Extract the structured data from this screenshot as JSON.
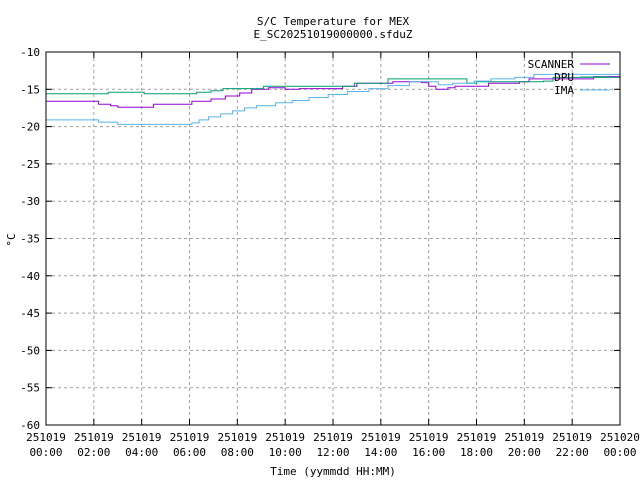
{
  "chart_data": {
    "type": "line",
    "title": "S/C Temperature for MEX",
    "subtitle": "E_SC20251019000000.sfduZ",
    "xlabel": "Time (yymmdd HH:MM)",
    "ylabel": "°C",
    "xlim": [
      0,
      24
    ],
    "ylim": [
      -60,
      -10
    ],
    "grid": true,
    "legend_position": "top-right",
    "x_ticks": [
      {
        "h": 0,
        "d": "251019",
        "t": "00:00"
      },
      {
        "h": 2,
        "d": "251019",
        "t": "02:00"
      },
      {
        "h": 4,
        "d": "251019",
        "t": "04:00"
      },
      {
        "h": 6,
        "d": "251019",
        "t": "06:00"
      },
      {
        "h": 8,
        "d": "251019",
        "t": "08:00"
      },
      {
        "h": 10,
        "d": "251019",
        "t": "10:00"
      },
      {
        "h": 12,
        "d": "251019",
        "t": "12:00"
      },
      {
        "h": 14,
        "d": "251019",
        "t": "14:00"
      },
      {
        "h": 16,
        "d": "251019",
        "t": "16:00"
      },
      {
        "h": 18,
        "d": "251019",
        "t": "18:00"
      },
      {
        "h": 20,
        "d": "251019",
        "t": "20:00"
      },
      {
        "h": 22,
        "d": "251019",
        "t": "22:00"
      },
      {
        "h": 24,
        "d": "251020",
        "t": "00:00"
      }
    ],
    "y_ticks": [
      -10,
      -15,
      -20,
      -25,
      -30,
      -35,
      -40,
      -45,
      -50,
      -55,
      -60
    ],
    "series": [
      {
        "name": "SCANNER",
        "color": "#9400d3",
        "points": [
          [
            0,
            -16.6
          ],
          [
            2.2,
            -17.0
          ],
          [
            2.7,
            -17.2
          ],
          [
            3.0,
            -17.4
          ],
          [
            4.5,
            -17.0
          ],
          [
            6.1,
            -16.6
          ],
          [
            6.9,
            -16.3
          ],
          [
            7.5,
            -15.9
          ],
          [
            8.1,
            -15.5
          ],
          [
            8.6,
            -15.0
          ],
          [
            9.3,
            -14.8
          ],
          [
            10.0,
            -15.0
          ],
          [
            10.6,
            -14.9
          ],
          [
            12.4,
            -14.6
          ],
          [
            13.0,
            -14.2
          ],
          [
            14.5,
            -14.0
          ],
          [
            15.7,
            -14.1
          ],
          [
            16.0,
            -14.6
          ],
          [
            16.3,
            -15.0
          ],
          [
            16.8,
            -14.8
          ],
          [
            17.1,
            -14.6
          ],
          [
            18.5,
            -14.2
          ],
          [
            19.8,
            -14.0
          ],
          [
            20.2,
            -13.6
          ],
          [
            21.5,
            -13.6
          ],
          [
            22.9,
            -13.3
          ],
          [
            24,
            -13.3
          ]
        ]
      },
      {
        "name": "DPU",
        "color": "#009e73",
        "points": [
          [
            0,
            -15.6
          ],
          [
            2.6,
            -15.4
          ],
          [
            4.1,
            -15.6
          ],
          [
            6.3,
            -15.4
          ],
          [
            6.9,
            -15.2
          ],
          [
            7.4,
            -14.9
          ],
          [
            9.1,
            -14.6
          ],
          [
            12.9,
            -14.2
          ],
          [
            14.3,
            -13.6
          ],
          [
            17.5,
            -13.6
          ],
          [
            17.6,
            -14.2
          ],
          [
            18.0,
            -14.0
          ],
          [
            20.8,
            -13.9
          ],
          [
            21.2,
            -13.4
          ],
          [
            24,
            -13.4
          ]
        ]
      },
      {
        "name": "IMA",
        "color": "#56b4e9",
        "points": [
          [
            0,
            -19.1
          ],
          [
            2.2,
            -19.4
          ],
          [
            3.0,
            -19.7
          ],
          [
            6.1,
            -19.5
          ],
          [
            6.4,
            -19.1
          ],
          [
            6.8,
            -18.7
          ],
          [
            7.3,
            -18.3
          ],
          [
            7.8,
            -17.9
          ],
          [
            8.3,
            -17.5
          ],
          [
            8.8,
            -17.2
          ],
          [
            9.6,
            -16.8
          ],
          [
            10.3,
            -16.5
          ],
          [
            11.0,
            -16.1
          ],
          [
            11.8,
            -15.7
          ],
          [
            12.6,
            -15.3
          ],
          [
            13.5,
            -14.9
          ],
          [
            14.3,
            -14.5
          ],
          [
            15.2,
            -14.0
          ],
          [
            16.0,
            -14.0
          ],
          [
            16.4,
            -14.4
          ],
          [
            17.0,
            -14.2
          ],
          [
            17.9,
            -13.9
          ],
          [
            18.6,
            -13.6
          ],
          [
            19.6,
            -13.4
          ],
          [
            20.4,
            -13.0
          ],
          [
            24,
            -13.0
          ]
        ]
      }
    ]
  }
}
